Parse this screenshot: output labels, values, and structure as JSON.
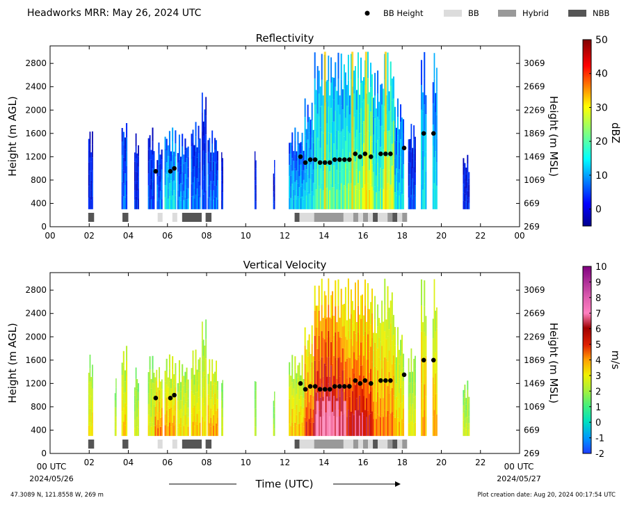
{
  "header": {
    "title": "Headworks MRR:  May 26, 2024 UTC"
  },
  "legend": {
    "items": [
      {
        "label": "BB Height",
        "kind": "marker",
        "color": "#000000"
      },
      {
        "label": "BB",
        "kind": "swatch",
        "color": "#dcdcdc"
      },
      {
        "label": "Hybrid",
        "kind": "swatch",
        "color": "#999999"
      },
      {
        "label": "NBB",
        "kind": "swatch",
        "color": "#555555"
      }
    ]
  },
  "footer": {
    "location": "47.3089 N, 121.8558 W, 269 m",
    "creation": "Plot creation date: Aug 20, 2024 00:17:54 UTC",
    "xlabel": "Time (UTC)",
    "start_time": "00 UTC",
    "start_date": "2024/05/26",
    "end_time": "00 UTC",
    "end_date": "2024/05/27"
  },
  "colors": {
    "bb_light": "#dcdcdc",
    "bb_hybrid": "#999999",
    "bb_nbb": "#555555"
  },
  "chart_data": [
    {
      "type": "heatmap",
      "id": "reflectivity",
      "title": "Reflectivity",
      "ylabel": "Height (m AGL)",
      "y2label": "Height (m MSL)",
      "xlim": [
        0,
        24
      ],
      "ylim": [
        0,
        3100
      ],
      "x_ticks": [
        "00",
        "02",
        "04",
        "06",
        "08",
        "10",
        "12",
        "14",
        "16",
        "18",
        "20",
        "22",
        "00"
      ],
      "y_ticks": [
        0,
        400,
        800,
        1200,
        1600,
        2000,
        2400,
        2800
      ],
      "y2_ticks": [
        269,
        669,
        1069,
        1469,
        1869,
        2269,
        2669,
        3069
      ],
      "colorbar": {
        "label": "dBZ",
        "min": -5,
        "max": 50,
        "ticks": [
          0,
          10,
          20,
          30,
          40,
          50
        ],
        "colormap": "jet"
      },
      "echo_columns": [
        {
          "t0": 1.95,
          "t1": 2.2,
          "top": 1700,
          "level": 0.1
        },
        {
          "t0": 3.65,
          "t1": 3.95,
          "top": 1850,
          "level": 0.2
        },
        {
          "t0": 4.3,
          "t1": 4.55,
          "top": 1600,
          "level": 0.1
        },
        {
          "t0": 5.0,
          "t1": 5.35,
          "top": 1700,
          "level": 0.15
        },
        {
          "t0": 5.45,
          "t1": 5.75,
          "top": 1500,
          "level": 0.2
        },
        {
          "t0": 5.85,
          "t1": 6.45,
          "top": 1700,
          "level": 0.35
        },
        {
          "t0": 6.5,
          "t1": 7.1,
          "top": 1600,
          "level": 0.25
        },
        {
          "t0": 7.2,
          "t1": 7.7,
          "top": 1800,
          "level": 0.2
        },
        {
          "t0": 7.75,
          "t1": 8.0,
          "top": 2300,
          "level": 0.15
        },
        {
          "t0": 8.05,
          "t1": 8.6,
          "top": 1650,
          "level": 0.2
        },
        {
          "t0": 8.75,
          "t1": 8.85,
          "top": 1300,
          "level": 0.1
        },
        {
          "t0": 10.45,
          "t1": 10.55,
          "top": 1300,
          "level": 0.1
        },
        {
          "t0": 11.4,
          "t1": 11.5,
          "top": 1200,
          "level": 0.1
        },
        {
          "t0": 12.2,
          "t1": 13.0,
          "top": 1700,
          "level": 0.3
        },
        {
          "t0": 13.0,
          "t1": 13.5,
          "top": 2200,
          "level": 0.35
        },
        {
          "t0": 13.5,
          "t1": 14.0,
          "top": 3000,
          "level": 0.45
        },
        {
          "t0": 14.0,
          "t1": 14.4,
          "top": 3000,
          "level": 0.5
        },
        {
          "t0": 14.4,
          "t1": 15.0,
          "top": 3000,
          "level": 0.45
        },
        {
          "t0": 15.0,
          "t1": 15.5,
          "top": 3000,
          "level": 0.5
        },
        {
          "t0": 15.5,
          "t1": 16.0,
          "top": 3000,
          "level": 0.55
        },
        {
          "t0": 16.0,
          "t1": 16.5,
          "top": 3000,
          "level": 0.65
        },
        {
          "t0": 16.5,
          "t1": 17.0,
          "top": 2700,
          "level": 0.45
        },
        {
          "t0": 17.0,
          "t1": 17.6,
          "top": 3000,
          "level": 0.6
        },
        {
          "t0": 17.6,
          "t1": 18.1,
          "top": 2200,
          "level": 0.35
        },
        {
          "t0": 18.3,
          "t1": 18.7,
          "top": 1800,
          "level": 0.15
        },
        {
          "t0": 18.95,
          "t1": 19.25,
          "top": 3000,
          "level": 0.35
        },
        {
          "t0": 19.55,
          "t1": 19.8,
          "top": 3000,
          "level": 0.35
        },
        {
          "t0": 21.1,
          "t1": 21.45,
          "top": 1250,
          "level": 0.1
        }
      ],
      "bb_height": [
        {
          "t": 5.4,
          "h": 950
        },
        {
          "t": 6.15,
          "h": 950
        },
        {
          "t": 6.35,
          "h": 1000
        },
        {
          "t": 12.8,
          "h": 1200
        },
        {
          "t": 13.05,
          "h": 1100
        },
        {
          "t": 13.3,
          "h": 1150
        },
        {
          "t": 13.55,
          "h": 1150
        },
        {
          "t": 13.8,
          "h": 1100
        },
        {
          "t": 14.05,
          "h": 1100
        },
        {
          "t": 14.3,
          "h": 1100
        },
        {
          "t": 14.55,
          "h": 1150
        },
        {
          "t": 14.8,
          "h": 1150
        },
        {
          "t": 15.05,
          "h": 1150
        },
        {
          "t": 15.3,
          "h": 1150
        },
        {
          "t": 15.6,
          "h": 1250
        },
        {
          "t": 15.85,
          "h": 1200
        },
        {
          "t": 16.1,
          "h": 1250
        },
        {
          "t": 16.4,
          "h": 1200
        },
        {
          "t": 16.9,
          "h": 1250
        },
        {
          "t": 17.15,
          "h": 1250
        },
        {
          "t": 17.4,
          "h": 1250
        },
        {
          "t": 18.1,
          "h": 1350
        },
        {
          "t": 19.1,
          "h": 1600
        },
        {
          "t": 19.6,
          "h": 1600
        }
      ],
      "bb_type": [
        {
          "t0": 1.95,
          "t1": 2.25,
          "type": "nbb"
        },
        {
          "t0": 3.7,
          "t1": 4.0,
          "type": "nbb"
        },
        {
          "t0": 5.5,
          "t1": 5.75,
          "type": "bb"
        },
        {
          "t0": 6.25,
          "t1": 6.5,
          "type": "bb"
        },
        {
          "t0": 6.75,
          "t1": 7.75,
          "type": "nbb"
        },
        {
          "t0": 7.95,
          "t1": 8.25,
          "type": "nbb"
        },
        {
          "t0": 12.5,
          "t1": 12.75,
          "type": "nbb"
        },
        {
          "t0": 12.75,
          "t1": 13.5,
          "type": "bb"
        },
        {
          "t0": 13.5,
          "t1": 15.0,
          "type": "hybrid"
        },
        {
          "t0": 15.0,
          "t1": 15.5,
          "type": "bb"
        },
        {
          "t0": 15.5,
          "t1": 15.75,
          "type": "hybrid"
        },
        {
          "t0": 15.75,
          "t1": 16.0,
          "type": "bb"
        },
        {
          "t0": 16.0,
          "t1": 16.25,
          "type": "hybrid"
        },
        {
          "t0": 16.25,
          "t1": 16.5,
          "type": "bb"
        },
        {
          "t0": 16.5,
          "t1": 16.75,
          "type": "nbb"
        },
        {
          "t0": 16.75,
          "t1": 17.25,
          "type": "bb"
        },
        {
          "t0": 17.25,
          "t1": 17.5,
          "type": "hybrid"
        },
        {
          "t0": 17.5,
          "t1": 17.75,
          "type": "nbb"
        },
        {
          "t0": 17.75,
          "t1": 18.0,
          "type": "bb"
        },
        {
          "t0": 18.0,
          "t1": 18.25,
          "type": "hybrid"
        }
      ]
    },
    {
      "type": "heatmap",
      "id": "velocity",
      "title": "Vertical Velocity",
      "ylabel": "Height (m AGL)",
      "y2label": "Height (m MSL)",
      "xlim": [
        0,
        24
      ],
      "ylim": [
        0,
        3100
      ],
      "x_ticks": [
        "",
        "02",
        "04",
        "06",
        "08",
        "10",
        "12",
        "14",
        "16",
        "18",
        "20",
        "22",
        ""
      ],
      "y_ticks": [
        0,
        400,
        800,
        1200,
        1600,
        2000,
        2400,
        2800
      ],
      "y2_ticks": [
        269,
        669,
        1069,
        1469,
        1869,
        2269,
        2669,
        3069
      ],
      "colorbar": {
        "label": "m/s",
        "min": -2,
        "max": 10,
        "ticks": [
          -2,
          -1,
          0,
          1,
          2,
          3,
          4,
          5,
          6,
          7,
          8,
          9,
          10
        ],
        "colormap": "diverging-velocity"
      },
      "echo_columns": [
        {
          "t0": 1.95,
          "t1": 2.2,
          "top": 1700,
          "level": 0.45
        },
        {
          "t0": 3.3,
          "t1": 3.4,
          "top": 1300,
          "level": 0.35
        },
        {
          "t0": 3.65,
          "t1": 3.95,
          "top": 1850,
          "level": 0.5
        },
        {
          "t0": 4.3,
          "t1": 4.55,
          "top": 1500,
          "level": 0.35
        },
        {
          "t0": 5.0,
          "t1": 5.35,
          "top": 1700,
          "level": 0.4
        },
        {
          "t0": 5.35,
          "t1": 5.75,
          "top": 1500,
          "level": 0.6
        },
        {
          "t0": 5.85,
          "t1": 6.45,
          "top": 1700,
          "level": 0.55
        },
        {
          "t0": 6.5,
          "t1": 7.1,
          "top": 1600,
          "level": 0.45
        },
        {
          "t0": 7.2,
          "t1": 7.7,
          "top": 1800,
          "level": 0.5
        },
        {
          "t0": 7.75,
          "t1": 8.0,
          "top": 2300,
          "level": 0.45
        },
        {
          "t0": 8.05,
          "t1": 8.6,
          "top": 1650,
          "level": 0.55
        },
        {
          "t0": 8.75,
          "t1": 8.85,
          "top": 1300,
          "level": 0.35
        },
        {
          "t0": 10.45,
          "t1": 10.55,
          "top": 1300,
          "level": 0.3
        },
        {
          "t0": 11.4,
          "t1": 11.5,
          "top": 1200,
          "level": 0.3
        },
        {
          "t0": 12.2,
          "t1": 13.0,
          "top": 1700,
          "level": 0.5
        },
        {
          "t0": 13.0,
          "t1": 13.5,
          "top": 2200,
          "level": 0.7
        },
        {
          "t0": 13.5,
          "t1": 14.0,
          "top": 3000,
          "level": 0.85
        },
        {
          "t0": 14.0,
          "t1": 14.4,
          "top": 3000,
          "level": 0.9
        },
        {
          "t0": 14.4,
          "t1": 15.0,
          "top": 3000,
          "level": 0.85
        },
        {
          "t0": 15.0,
          "t1": 15.5,
          "top": 3000,
          "level": 0.75
        },
        {
          "t0": 15.5,
          "t1": 16.0,
          "top": 3000,
          "level": 0.8
        },
        {
          "t0": 16.0,
          "t1": 16.5,
          "top": 3000,
          "level": 0.75
        },
        {
          "t0": 16.5,
          "t1": 17.0,
          "top": 2700,
          "level": 0.6
        },
        {
          "t0": 17.0,
          "t1": 17.6,
          "top": 3000,
          "level": 0.6
        },
        {
          "t0": 17.6,
          "t1": 18.1,
          "top": 2200,
          "level": 0.5
        },
        {
          "t0": 18.3,
          "t1": 18.7,
          "top": 1800,
          "level": 0.4
        },
        {
          "t0": 18.95,
          "t1": 19.25,
          "top": 3000,
          "level": 0.55
        },
        {
          "t0": 19.55,
          "t1": 19.8,
          "top": 3000,
          "level": 0.55
        },
        {
          "t0": 21.1,
          "t1": 21.45,
          "top": 1250,
          "level": 0.35
        }
      ],
      "bb_height": [
        {
          "t": 5.4,
          "h": 950
        },
        {
          "t": 6.15,
          "h": 950
        },
        {
          "t": 6.35,
          "h": 1000
        },
        {
          "t": 12.8,
          "h": 1200
        },
        {
          "t": 13.05,
          "h": 1100
        },
        {
          "t": 13.3,
          "h": 1150
        },
        {
          "t": 13.55,
          "h": 1150
        },
        {
          "t": 13.8,
          "h": 1100
        },
        {
          "t": 14.05,
          "h": 1100
        },
        {
          "t": 14.3,
          "h": 1100
        },
        {
          "t": 14.55,
          "h": 1150
        },
        {
          "t": 14.8,
          "h": 1150
        },
        {
          "t": 15.05,
          "h": 1150
        },
        {
          "t": 15.3,
          "h": 1150
        },
        {
          "t": 15.6,
          "h": 1250
        },
        {
          "t": 15.85,
          "h": 1200
        },
        {
          "t": 16.1,
          "h": 1250
        },
        {
          "t": 16.4,
          "h": 1200
        },
        {
          "t": 16.9,
          "h": 1250
        },
        {
          "t": 17.15,
          "h": 1250
        },
        {
          "t": 17.4,
          "h": 1250
        },
        {
          "t": 18.1,
          "h": 1350
        },
        {
          "t": 19.1,
          "h": 1600
        },
        {
          "t": 19.6,
          "h": 1600
        }
      ],
      "bb_type": [
        {
          "t0": 1.95,
          "t1": 2.25,
          "type": "nbb"
        },
        {
          "t0": 3.7,
          "t1": 4.0,
          "type": "nbb"
        },
        {
          "t0": 5.5,
          "t1": 5.75,
          "type": "bb"
        },
        {
          "t0": 6.25,
          "t1": 6.5,
          "type": "bb"
        },
        {
          "t0": 6.75,
          "t1": 7.75,
          "type": "nbb"
        },
        {
          "t0": 7.95,
          "t1": 8.25,
          "type": "nbb"
        },
        {
          "t0": 12.5,
          "t1": 12.75,
          "type": "nbb"
        },
        {
          "t0": 12.75,
          "t1": 13.5,
          "type": "bb"
        },
        {
          "t0": 13.5,
          "t1": 15.0,
          "type": "hybrid"
        },
        {
          "t0": 15.0,
          "t1": 15.5,
          "type": "bb"
        },
        {
          "t0": 15.5,
          "t1": 15.75,
          "type": "hybrid"
        },
        {
          "t0": 15.75,
          "t1": 16.0,
          "type": "bb"
        },
        {
          "t0": 16.0,
          "t1": 16.25,
          "type": "hybrid"
        },
        {
          "t0": 16.25,
          "t1": 16.5,
          "type": "bb"
        },
        {
          "t0": 16.5,
          "t1": 16.75,
          "type": "nbb"
        },
        {
          "t0": 16.75,
          "t1": 17.25,
          "type": "bb"
        },
        {
          "t0": 17.25,
          "t1": 17.5,
          "type": "hybrid"
        },
        {
          "t0": 17.5,
          "t1": 17.75,
          "type": "nbb"
        },
        {
          "t0": 17.75,
          "t1": 18.0,
          "type": "bb"
        },
        {
          "t0": 18.0,
          "t1": 18.25,
          "type": "hybrid"
        }
      ]
    }
  ]
}
